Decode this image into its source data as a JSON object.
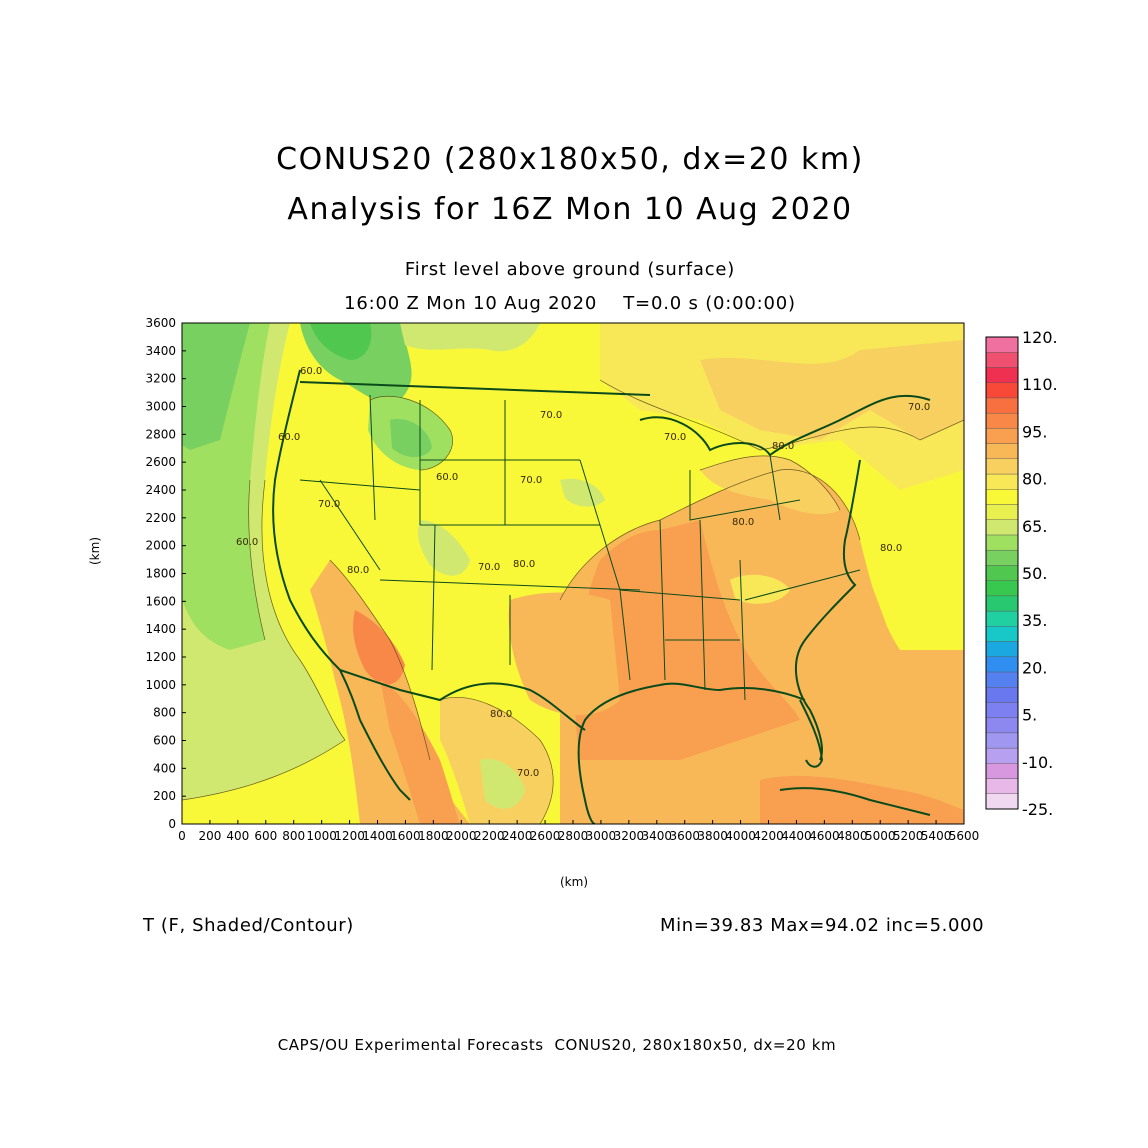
{
  "title": {
    "line1": "CONUS20 (280x180x50, dx=20 km)",
    "line2": "Analysis for 16Z Mon 10 Aug 2020"
  },
  "subtitle": {
    "line1": "First level above ground (surface)",
    "line2": "16:00 Z Mon 10 Aug 2020    T=0.0 s (0:00:00)"
  },
  "axes": {
    "x_unit": "(km)",
    "y_unit": "(km)",
    "x_ticks": [
      "0",
      "200",
      "400",
      "600",
      "800",
      "1000",
      "1200",
      "1400",
      "1600",
      "1800",
      "2000",
      "2200",
      "2400",
      "2600",
      "2800",
      "3000",
      "3200",
      "3400",
      "3600",
      "3800",
      "4000",
      "4200",
      "4400",
      "4600",
      "4800",
      "5000",
      "5200",
      "5400",
      "5600"
    ],
    "y_ticks": [
      "0",
      "200",
      "400",
      "600",
      "800",
      "1000",
      "1200",
      "1400",
      "1600",
      "1800",
      "2000",
      "2200",
      "2400",
      "2600",
      "2800",
      "3000",
      "3200",
      "3400",
      "3600"
    ],
    "x_range": [
      0,
      5600
    ],
    "y_range": [
      0,
      3600
    ]
  },
  "colorbar": {
    "labels": [
      "120.",
      "110.",
      "95.",
      "80.",
      "65.",
      "50.",
      "35.",
      "20.",
      "5.",
      "-10.",
      "-25."
    ],
    "colors": [
      "#f0d8f0",
      "#e8b8e8",
      "#d898e0",
      "#b8a0f0",
      "#a098f0",
      "#8c88f0",
      "#7c80f0",
      "#6a78f0",
      "#5480f0",
      "#2f8ef0",
      "#1ba8e0",
      "#18c8c8",
      "#20d0a0",
      "#28c870",
      "#38c850",
      "#50c850",
      "#78d060",
      "#a0e060",
      "#d0e870",
      "#e8f050",
      "#f8f838",
      "#f8e858",
      "#f8d060",
      "#f8b858",
      "#f8a050",
      "#f88848",
      "#f87040",
      "#f84838",
      "#f03050",
      "#f05070",
      "#f070a0"
    ]
  },
  "contour_labels": [
    "70.0",
    "70.0",
    "60.0",
    "70.0",
    "80.0",
    "80.0",
    "60.0",
    "60.0",
    "80.0",
    "80.0",
    "70.0",
    "80.0",
    "70.0",
    "60.0",
    "70.0",
    "80.0",
    "70.0"
  ],
  "field": {
    "variable_label": "T (F, Shaded/Contour)",
    "stats_label": "Min=39.83 Max=94.02 inc=5.000",
    "min": 39.83,
    "max": 94.02,
    "inc": 5.0
  },
  "footer": "CAPS/OU Experimental Forecasts  CONUS20, 280x180x50, dx=20 km"
}
